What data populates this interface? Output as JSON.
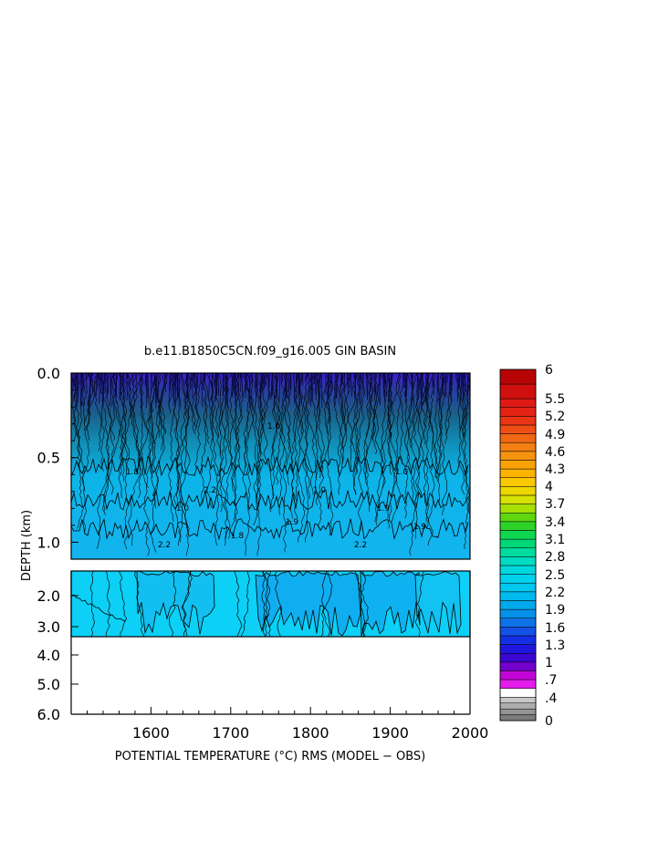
{
  "chart_data": {
    "type": "heatmap",
    "title": "b.e11.B1850C5CN.f09_g16.005 GIN BASIN",
    "xlabel": "POTENTIAL TEMPERATURE (°C) RMS (MODEL − OBS)",
    "ylabel": "DEPTH (km)",
    "xlim": [
      1500,
      2000
    ],
    "x_ticks": [
      "1600",
      "1700",
      "1800",
      "1900",
      "2000"
    ],
    "y_ticks": [
      "0.0",
      "0.5",
      "1.0",
      "2.0",
      "3.0",
      "4.0",
      "5.0",
      "6.0"
    ],
    "upper_panel": {
      "depth_range_km": [
        0.0,
        1.1
      ]
    },
    "lower_panel": {
      "depth_range_km": [
        1.1,
        6.0
      ],
      "data_bottom_km": 3.35
    },
    "colorbar_labels": [
      "6",
      "5.5",
      "5.2",
      "4.9",
      "4.6",
      "4.3",
      "4",
      "3.7",
      "3.4",
      "3.1",
      "2.8",
      "2.5",
      "2.2",
      "1.9",
      "1.6",
      "1.3",
      "1",
      ".7",
      ".4",
      "0"
    ],
    "colorbar_levels": [
      0,
      0.1,
      0.2,
      0.3,
      0.4,
      0.55,
      0.7,
      0.85,
      1.0,
      1.15,
      1.3,
      1.45,
      1.6,
      1.75,
      1.9,
      2.05,
      2.2,
      2.35,
      2.5,
      2.65,
      2.8,
      2.95,
      3.1,
      3.25,
      3.4,
      3.55,
      3.7,
      3.85,
      4.0,
      4.15,
      4.3,
      4.45,
      4.6,
      4.75,
      4.9,
      5.05,
      5.2,
      5.35,
      5.5,
      5.75,
      6.0
    ],
    "contour_labels": [
      "1.0",
      "1.0",
      "1.0",
      "1.0",
      "1.8",
      "1.8",
      "1.9",
      "1.9",
      "1.9",
      "2.2",
      "2.2",
      "2.2"
    ],
    "grid": false
  }
}
